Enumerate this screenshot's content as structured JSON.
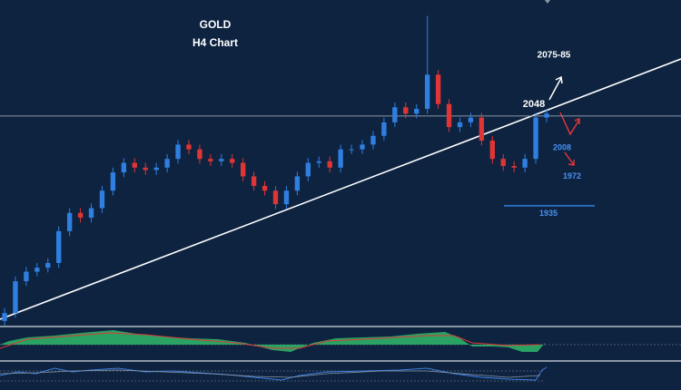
{
  "chart_data": {
    "type": "candlestick",
    "title": "GOLD",
    "subtitle": "H4 Chart",
    "up_color": "#2f7fe0",
    "down_color": "#e03535",
    "ylim": [
      1783,
      2194
    ],
    "open": [
      1790,
      1800,
      1840,
      1852,
      1857,
      1863,
      1903,
      1926,
      1920,
      1932,
      1954,
      1977,
      1989,
      1983,
      1980,
      1983,
      1994,
      2012,
      2006,
      1994,
      1991,
      1994,
      1989,
      1972,
      1960,
      1954,
      1937,
      1954,
      1972,
      1989,
      1991,
      1983,
      2006,
      2006,
      2012,
      2023,
      2040,
      2059,
      2051,
      2057,
      2100,
      2063,
      2034,
      2040,
      2046,
      2017,
      1994,
      1985,
      1983,
      1994,
      2046
    ],
    "high": [
      1806,
      1846,
      1858,
      1863,
      1869,
      1909,
      1932,
      1932,
      1938,
      1960,
      1983,
      1995,
      1995,
      1989,
      1989,
      2000,
      2018,
      2018,
      2012,
      2000,
      2000,
      2000,
      1995,
      1978,
      1966,
      1960,
      1960,
      1978,
      1995,
      1997,
      1997,
      2012,
      2012,
      2018,
      2029,
      2046,
      2065,
      2065,
      2063,
      2174,
      2106,
      2069,
      2046,
      2052,
      2052,
      2023,
      2000,
      1991,
      2000,
      2052,
      2057
    ],
    "low": [
      1784,
      1794,
      1834,
      1846,
      1851,
      1857,
      1897,
      1914,
      1914,
      1926,
      1948,
      1971,
      1977,
      1974,
      1974,
      1977,
      1988,
      2000,
      1988,
      1985,
      1985,
      1983,
      1966,
      1954,
      1948,
      1931,
      1931,
      1948,
      1966,
      1983,
      1977,
      1977,
      2000,
      2000,
      2006,
      2017,
      2034,
      2045,
      2045,
      2051,
      2057,
      2028,
      2028,
      2034,
      2011,
      1988,
      1979,
      1977,
      1977,
      1988,
      2040
    ],
    "close": [
      1800,
      1840,
      1852,
      1857,
      1863,
      1903,
      1926,
      1920,
      1932,
      1954,
      1977,
      1989,
      1983,
      1980,
      1983,
      1994,
      2012,
      2006,
      1994,
      1991,
      1994,
      1989,
      1972,
      1960,
      1954,
      1937,
      1954,
      1972,
      1989,
      1991,
      1983,
      2006,
      2006,
      2012,
      2023,
      2040,
      2059,
      2051,
      2057,
      2100,
      2063,
      2034,
      2040,
      2046,
      2017,
      1994,
      1985,
      1983,
      1994,
      2046,
      2051
    ],
    "resistance": 2048,
    "support": 1935,
    "scenario_levels": [
      2008,
      1972
    ],
    "target": "2075-85"
  }
}
